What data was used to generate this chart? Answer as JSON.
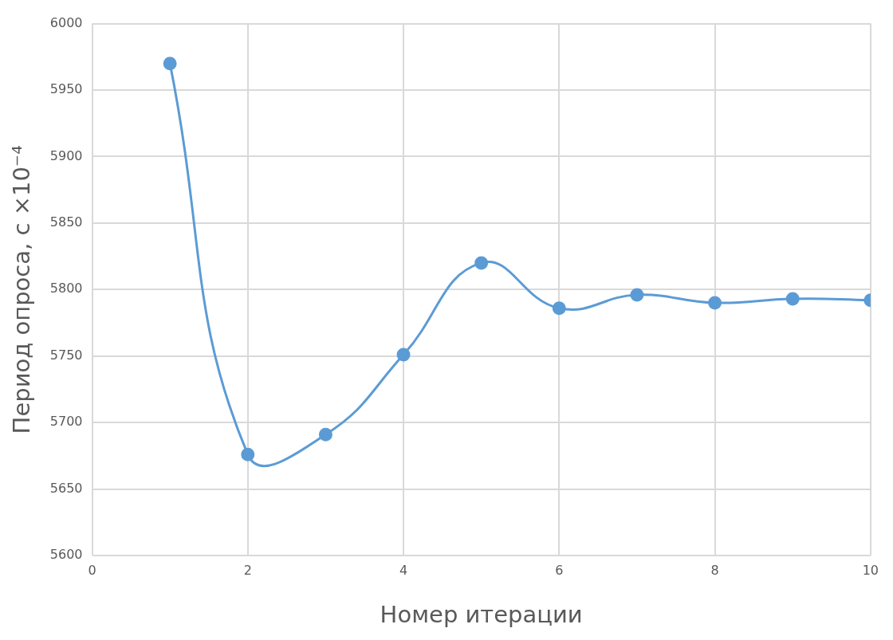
{
  "chart_data": {
    "type": "line",
    "xlabel": "Номер итерации",
    "ylabel": "Период опроса, с ×10⁻⁴",
    "x": [
      1,
      2,
      3,
      4,
      5,
      6,
      7,
      8,
      9,
      10
    ],
    "series": [
      {
        "color": "#5b9bd5",
        "values": [
          5970,
          5676,
          5691,
          5751,
          5820,
          5786,
          5796,
          5790,
          5793,
          5792
        ]
      }
    ],
    "xlim": [
      0,
      10
    ],
    "xticks": [
      0,
      2,
      4,
      6,
      8,
      10
    ],
    "ylim": [
      5600,
      6000
    ],
    "yticks": [
      5600,
      5650,
      5700,
      5750,
      5800,
      5850,
      5900,
      5950,
      6000
    ],
    "grid": true,
    "marker": "circle",
    "line_style": "solid",
    "legend": false
  }
}
